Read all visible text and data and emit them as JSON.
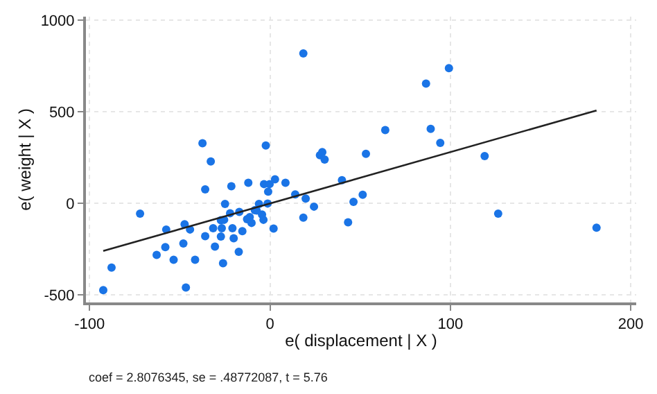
{
  "chart_data": {
    "type": "scatter",
    "xlabel": "e( displacement | X )",
    "ylabel": "e( weight | X )",
    "xlim": [
      -102,
      203
    ],
    "ylim": [
      -540,
      1020
    ],
    "xticks": [
      -100,
      0,
      100,
      200
    ],
    "yticks": [
      -500,
      0,
      500,
      1000
    ],
    "grid": true,
    "annotations": [
      "coef = 2.8076345, se = .48772087, t = 5.76"
    ],
    "series": [
      {
        "color": "#1a74e6",
        "marker": "circle",
        "x": [
          -92.4,
          -87.8,
          -72,
          -62.8,
          -58,
          -57.5,
          -53.4,
          -48,
          -47.3,
          -46.6,
          -44.3,
          -41.5,
          -37.4,
          -35.9,
          -35.9,
          -32.8,
          -31.5,
          -30.5,
          -27.2,
          -26.7,
          -27.2,
          -25.4,
          -26,
          -24.9,
          -21.4,
          -22.1,
          -20.8,
          -20.1,
          -17.3,
          -17,
          -15.3,
          -12,
          -12.7,
          -11.2,
          -10.2,
          -8.4,
          -7.4,
          -6.1,
          -4.4,
          -3.6,
          -3.3,
          -2.3,
          -1,
          -1.3,
          -0.2,
          2,
          2.8,
          8.6,
          14,
          18.5,
          18.5,
          19.8,
          24.4,
          27.7,
          29,
          30.3,
          39.9,
          43.3,
          46.3,
          51.4,
          53.2,
          63.9,
          86.5,
          89.1,
          94.4,
          99.2,
          119,
          126.5,
          181
        ],
        "values": [
          -473,
          -350,
          -55,
          -281,
          -238,
          -142,
          -307,
          -218,
          -113,
          -459,
          -142,
          -307,
          329,
          77,
          -178,
          230,
          -135,
          -235,
          -180,
          -135,
          -91,
          -89,
          -326,
          -2,
          94,
          -53,
          -135,
          -190,
          -264,
          -46,
          -151,
          113,
          -86,
          -74,
          -106,
          -36,
          -38,
          -2,
          -60,
          -89,
          106,
          317,
          65,
          0,
          106,
          -137,
          132,
          113,
          50,
          819,
          -77,
          27,
          -17,
          264,
          281,
          240,
          127,
          -103,
          9,
          48,
          271,
          401,
          655,
          408,
          331,
          739,
          259,
          -55,
          -132
        ]
      },
      {
        "type": "line",
        "color": "#222222",
        "marker": "none",
        "x": [
          -92.4,
          181
        ],
        "values": [
          -259,
          508
        ]
      }
    ]
  }
}
